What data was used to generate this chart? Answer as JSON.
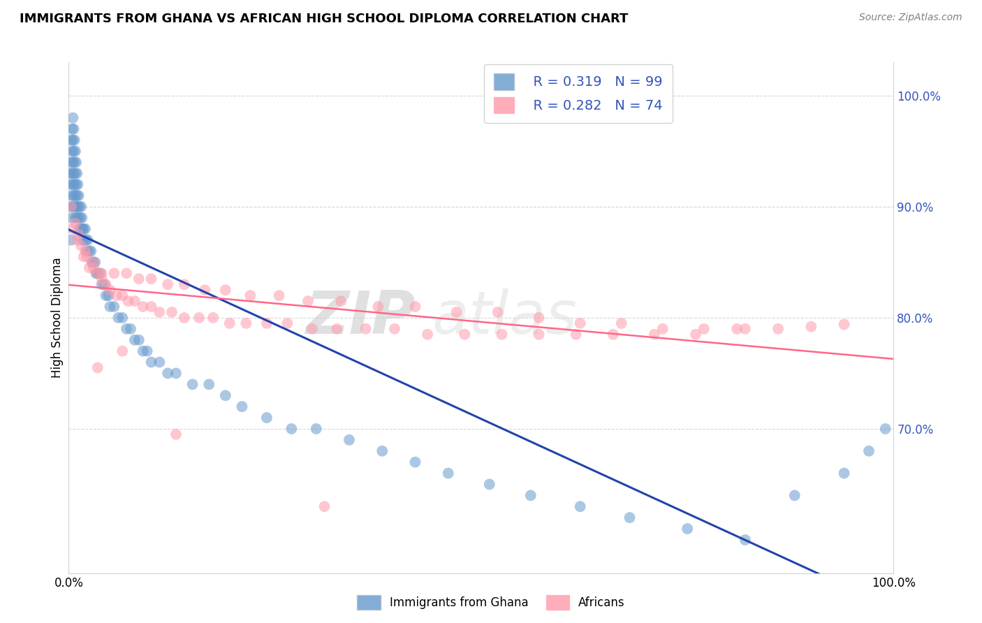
{
  "title": "IMMIGRANTS FROM GHANA VS AFRICAN HIGH SCHOOL DIPLOMA CORRELATION CHART",
  "source": "Source: ZipAtlas.com",
  "ylabel": "High School Diploma",
  "legend1_r": "R = 0.319",
  "legend1_n": "N = 99",
  "legend2_r": "R = 0.282",
  "legend2_n": "N = 74",
  "bottom_legend": [
    "Immigrants from Ghana",
    "Africans"
  ],
  "blue_color": "#6699CC",
  "pink_color": "#FF99AA",
  "blue_line_color": "#2244AA",
  "pink_line_color": "#FF6688",
  "r_n_color": "#3355BB",
  "watermark_zip": "ZIP",
  "watermark_atlas": "atlas",
  "blue_scatter_x": [
    0.002,
    0.003,
    0.003,
    0.003,
    0.003,
    0.003,
    0.004,
    0.004,
    0.004,
    0.004,
    0.004,
    0.005,
    0.005,
    0.005,
    0.005,
    0.005,
    0.006,
    0.006,
    0.006,
    0.006,
    0.007,
    0.007,
    0.007,
    0.007,
    0.008,
    0.008,
    0.008,
    0.008,
    0.009,
    0.009,
    0.009,
    0.01,
    0.01,
    0.01,
    0.011,
    0.011,
    0.012,
    0.012,
    0.013,
    0.013,
    0.014,
    0.015,
    0.015,
    0.016,
    0.016,
    0.017,
    0.018,
    0.019,
    0.02,
    0.021,
    0.022,
    0.023,
    0.025,
    0.027,
    0.028,
    0.03,
    0.032,
    0.033,
    0.035,
    0.038,
    0.04,
    0.043,
    0.045,
    0.048,
    0.05,
    0.055,
    0.06,
    0.065,
    0.07,
    0.075,
    0.08,
    0.085,
    0.09,
    0.095,
    0.1,
    0.11,
    0.12,
    0.13,
    0.15,
    0.17,
    0.19,
    0.21,
    0.24,
    0.27,
    0.3,
    0.34,
    0.38,
    0.42,
    0.46,
    0.51,
    0.56,
    0.62,
    0.68,
    0.75,
    0.82,
    0.88,
    0.94,
    0.97,
    0.99
  ],
  "blue_scatter_y": [
    0.93,
    0.96,
    0.94,
    0.92,
    0.9,
    0.87,
    0.97,
    0.95,
    0.93,
    0.91,
    0.89,
    0.98,
    0.96,
    0.94,
    0.92,
    0.9,
    0.97,
    0.95,
    0.93,
    0.91,
    0.96,
    0.94,
    0.92,
    0.9,
    0.95,
    0.93,
    0.91,
    0.89,
    0.94,
    0.92,
    0.9,
    0.93,
    0.91,
    0.89,
    0.92,
    0.9,
    0.91,
    0.89,
    0.9,
    0.88,
    0.89,
    0.9,
    0.88,
    0.89,
    0.87,
    0.88,
    0.88,
    0.87,
    0.88,
    0.87,
    0.86,
    0.87,
    0.86,
    0.86,
    0.85,
    0.85,
    0.85,
    0.84,
    0.84,
    0.84,
    0.83,
    0.83,
    0.82,
    0.82,
    0.81,
    0.81,
    0.8,
    0.8,
    0.79,
    0.79,
    0.78,
    0.78,
    0.77,
    0.77,
    0.76,
    0.76,
    0.75,
    0.75,
    0.74,
    0.74,
    0.73,
    0.72,
    0.71,
    0.7,
    0.7,
    0.69,
    0.68,
    0.67,
    0.66,
    0.65,
    0.64,
    0.63,
    0.62,
    0.61,
    0.6,
    0.64,
    0.66,
    0.68,
    0.7
  ],
  "pink_scatter_x": [
    0.003,
    0.008,
    0.012,
    0.015,
    0.018,
    0.022,
    0.025,
    0.03,
    0.035,
    0.04,
    0.045,
    0.05,
    0.058,
    0.065,
    0.072,
    0.08,
    0.09,
    0.1,
    0.11,
    0.125,
    0.14,
    0.158,
    0.175,
    0.195,
    0.215,
    0.24,
    0.265,
    0.295,
    0.325,
    0.36,
    0.395,
    0.435,
    0.48,
    0.525,
    0.57,
    0.615,
    0.66,
    0.71,
    0.76,
    0.81,
    0.005,
    0.01,
    0.02,
    0.03,
    0.04,
    0.055,
    0.07,
    0.085,
    0.1,
    0.12,
    0.14,
    0.165,
    0.19,
    0.22,
    0.255,
    0.29,
    0.33,
    0.375,
    0.42,
    0.47,
    0.52,
    0.57,
    0.62,
    0.67,
    0.72,
    0.77,
    0.82,
    0.86,
    0.9,
    0.94,
    0.035,
    0.065,
    0.13,
    0.31
  ],
  "pink_scatter_y": [
    0.9,
    0.885,
    0.875,
    0.865,
    0.855,
    0.855,
    0.845,
    0.845,
    0.84,
    0.835,
    0.83,
    0.825,
    0.82,
    0.82,
    0.815,
    0.815,
    0.81,
    0.81,
    0.805,
    0.805,
    0.8,
    0.8,
    0.8,
    0.795,
    0.795,
    0.795,
    0.795,
    0.79,
    0.79,
    0.79,
    0.79,
    0.785,
    0.785,
    0.785,
    0.785,
    0.785,
    0.785,
    0.785,
    0.785,
    0.79,
    0.88,
    0.87,
    0.86,
    0.85,
    0.84,
    0.84,
    0.84,
    0.835,
    0.835,
    0.83,
    0.83,
    0.825,
    0.825,
    0.82,
    0.82,
    0.815,
    0.815,
    0.81,
    0.81,
    0.805,
    0.805,
    0.8,
    0.795,
    0.795,
    0.79,
    0.79,
    0.79,
    0.79,
    0.792,
    0.794,
    0.755,
    0.77,
    0.695,
    0.63
  ]
}
